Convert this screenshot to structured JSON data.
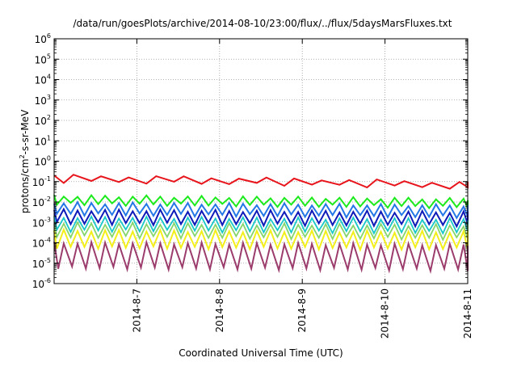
{
  "chart_data": {
    "type": "line",
    "title": "/data/run/goesPlots/archive/2014-08-10/23:00/flux/../flux/5daysMarsFluxes.txt",
    "xlabel": "Coordinated Universal Time (UTC)",
    "ylabel": {
      "prefix": "protons/cm",
      "sup": "2",
      "suffix": "-s-sr-MeV"
    },
    "x_scale": "time",
    "y_scale": "log",
    "xlim": [
      "2014-08-06T00:00",
      "2014-08-11T00:00"
    ],
    "ylim": [
      1e-06,
      1000000.0
    ],
    "grid": true,
    "x_tick_labels": [
      "2014-8-7",
      "2014-8-8",
      "2014-8-9",
      "2014-8-10",
      "2014-8-11"
    ],
    "x_tick_dates": [
      "2014-08-07",
      "2014-08-08",
      "2014-08-09",
      "2014-08-10",
      "2014-08-11"
    ],
    "y_ticks": [
      {
        "value": 1e-06,
        "base": "10",
        "exp": "-6"
      },
      {
        "value": 1e-05,
        "base": "10",
        "exp": "-5"
      },
      {
        "value": 0.0001,
        "base": "10",
        "exp": "-4"
      },
      {
        "value": 0.001,
        "base": "10",
        "exp": "-3"
      },
      {
        "value": 0.01,
        "base": "10",
        "exp": "-2"
      },
      {
        "value": 0.1,
        "base": "10",
        "exp": "-1"
      },
      {
        "value": 1.0,
        "base": "10",
        "exp": "0"
      },
      {
        "value": 10.0,
        "base": "10",
        "exp": "1"
      },
      {
        "value": 100.0,
        "base": "10",
        "exp": "2"
      },
      {
        "value": 1000.0,
        "base": "10",
        "exp": "3"
      },
      {
        "value": 10000.0,
        "base": "10",
        "exp": "4"
      },
      {
        "value": 100000.0,
        "base": "10",
        "exp": "5"
      },
      {
        "value": 1000000.0,
        "base": "10",
        "exp": "6"
      }
    ],
    "series": [
      {
        "color": "#e8141b",
        "width": 2,
        "period_hours": 8.0,
        "hi": 0.2,
        "lo": 0.1,
        "trend_end": 0.45,
        "dip": 0.65
      },
      {
        "color": "#1cea1c",
        "width": 2,
        "period_hours": 4.0,
        "hi": 0.02,
        "lo": 0.008,
        "trend_end": 0.7,
        "dip": 0.5
      },
      {
        "color": "#2477e6",
        "width": 2,
        "period_hours": 4.0,
        "hi": 0.009,
        "lo": 0.0025,
        "trend_end": 0.75,
        "dip": 0.5
      },
      {
        "color": "#0e1bb8",
        "width": 2,
        "period_hours": 4.0,
        "hi": 0.004,
        "lo": 0.0009,
        "trend_end": 0.8,
        "dip": 0.5
      },
      {
        "color": "#19c8c8",
        "width": 1.8,
        "period_hours": 4.0,
        "hi": 0.0018,
        "lo": 0.0004,
        "trend_end": 0.8,
        "dip": 0.5
      },
      {
        "color": "#86d66c",
        "width": 1.8,
        "period_hours": 4.0,
        "hi": 0.0009,
        "lo": 0.0002,
        "trend_end": 0.8,
        "dip": 0.5
      },
      {
        "color": "#f3ef1c",
        "width": 2,
        "period_hours": 4.0,
        "hi": 0.0004,
        "lo": 6e-05,
        "trend_end": 0.85,
        "dip": 0.5
      },
      {
        "color": "#9b3c6c",
        "width": 2,
        "period_hours": 4.0,
        "hi": 0.0001,
        "lo": 6e-06,
        "trend_end": 0.8,
        "dip": 0.6
      }
    ]
  }
}
